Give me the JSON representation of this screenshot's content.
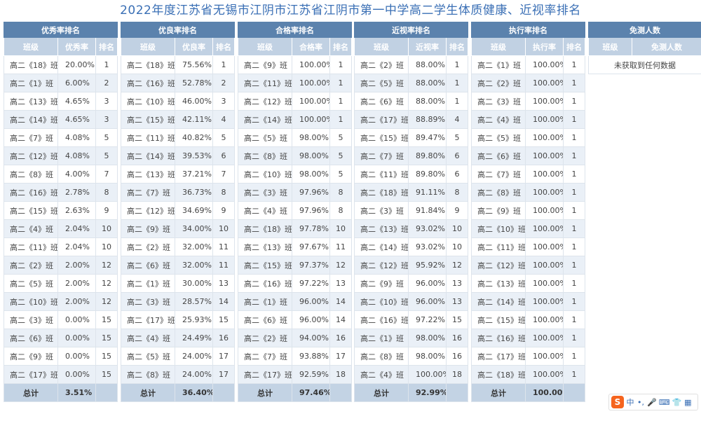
{
  "page": {
    "title": "2022年度江苏省无锡市江阴市江苏省江阴市第一中学高二学生体质健康、近视率排名"
  },
  "tables": [
    {
      "id": "excellent",
      "title": "优秀率排名",
      "headers": [
        "班级",
        "优秀率",
        "排名"
      ],
      "rows": [
        [
          "高二《18》班",
          "20.00%",
          "1"
        ],
        [
          "高二《1》班",
          "6.00%",
          "2"
        ],
        [
          "高二《13》班",
          "4.65%",
          "3"
        ],
        [
          "高二《14》班",
          "4.65%",
          "3"
        ],
        [
          "高二《7》班",
          "4.08%",
          "5"
        ],
        [
          "高二《12》班",
          "4.08%",
          "5"
        ],
        [
          "高二《8》班",
          "4.00%",
          "7"
        ],
        [
          "高二《16》班",
          "2.78%",
          "8"
        ],
        [
          "高二《15》班",
          "2.63%",
          "9"
        ],
        [
          "高二《4》班",
          "2.04%",
          "10"
        ],
        [
          "高二《11》班",
          "2.04%",
          "10"
        ],
        [
          "高二《2》班",
          "2.00%",
          "12"
        ],
        [
          "高二《5》班",
          "2.00%",
          "12"
        ],
        [
          "高二《10》班",
          "2.00%",
          "12"
        ],
        [
          "高二《3》班",
          "0.00%",
          "15"
        ],
        [
          "高二《6》班",
          "0.00%",
          "15"
        ],
        [
          "高二《9》班",
          "0.00%",
          "15"
        ],
        [
          "高二《17》班",
          "0.00%",
          "15"
        ]
      ],
      "total": [
        "总计",
        "3.51%",
        ""
      ]
    },
    {
      "id": "good",
      "title": "优良率排名",
      "headers": [
        "班级",
        "优良率",
        "排名"
      ],
      "rows": [
        [
          "高二《18》班",
          "75.56%",
          "1"
        ],
        [
          "高二《16》班",
          "52.78%",
          "2"
        ],
        [
          "高二《10》班",
          "46.00%",
          "3"
        ],
        [
          "高二《15》班",
          "42.11%",
          "4"
        ],
        [
          "高二《11》班",
          "40.82%",
          "5"
        ],
        [
          "高二《14》班",
          "39.53%",
          "6"
        ],
        [
          "高二《13》班",
          "37.21%",
          "7"
        ],
        [
          "高二《7》班",
          "36.73%",
          "8"
        ],
        [
          "高二《12》班",
          "34.69%",
          "9"
        ],
        [
          "高二《9》班",
          "34.00%",
          "10"
        ],
        [
          "高二《2》班",
          "32.00%",
          "11"
        ],
        [
          "高二《6》班",
          "32.00%",
          "11"
        ],
        [
          "高二《1》班",
          "30.00%",
          "13"
        ],
        [
          "高二《3》班",
          "28.57%",
          "14"
        ],
        [
          "高二《17》班",
          "25.93%",
          "15"
        ],
        [
          "高二《4》班",
          "24.49%",
          "16"
        ],
        [
          "高二《5》班",
          "24.00%",
          "17"
        ],
        [
          "高二《8》班",
          "24.00%",
          "17"
        ]
      ],
      "total": [
        "总计",
        "36.40%",
        ""
      ]
    },
    {
      "id": "pass",
      "title": "合格率排名",
      "headers": [
        "班级",
        "合格率",
        "排名"
      ],
      "rows": [
        [
          "高二《9》班",
          "100.00%",
          "1"
        ],
        [
          "高二《11》班",
          "100.00%",
          "1"
        ],
        [
          "高二《12》班",
          "100.00%",
          "1"
        ],
        [
          "高二《14》班",
          "100.00%",
          "1"
        ],
        [
          "高二《5》班",
          "98.00%",
          "5"
        ],
        [
          "高二《8》班",
          "98.00%",
          "5"
        ],
        [
          "高二《10》班",
          "98.00%",
          "5"
        ],
        [
          "高二《3》班",
          "97.96%",
          "8"
        ],
        [
          "高二《4》班",
          "97.96%",
          "8"
        ],
        [
          "高二《18》班",
          "97.78%",
          "10"
        ],
        [
          "高二《13》班",
          "97.67%",
          "11"
        ],
        [
          "高二《15》班",
          "97.37%",
          "12"
        ],
        [
          "高二《16》班",
          "97.22%",
          "13"
        ],
        [
          "高二《1》班",
          "96.00%",
          "14"
        ],
        [
          "高二《6》班",
          "96.00%",
          "14"
        ],
        [
          "高二《2》班",
          "94.00%",
          "16"
        ],
        [
          "高二《7》班",
          "93.88%",
          "17"
        ],
        [
          "高二《17》班",
          "92.59%",
          "18"
        ]
      ],
      "total": [
        "总计",
        "97.46%",
        ""
      ]
    },
    {
      "id": "myopia",
      "title": "近视率排名",
      "headers": [
        "班级",
        "近视率",
        "排名"
      ],
      "rows": [
        [
          "高二《2》班",
          "88.00%",
          "1"
        ],
        [
          "高二《5》班",
          "88.00%",
          "1"
        ],
        [
          "高二《6》班",
          "88.00%",
          "1"
        ],
        [
          "高二《17》班",
          "88.89%",
          "4"
        ],
        [
          "高二《15》班",
          "89.47%",
          "5"
        ],
        [
          "高二《7》班",
          "89.80%",
          "6"
        ],
        [
          "高二《11》班",
          "89.80%",
          "6"
        ],
        [
          "高二《18》班",
          "91.11%",
          "8"
        ],
        [
          "高二《3》班",
          "91.84%",
          "9"
        ],
        [
          "高二《13》班",
          "93.02%",
          "10"
        ],
        [
          "高二《14》班",
          "93.02%",
          "10"
        ],
        [
          "高二《12》班",
          "95.92%",
          "12"
        ],
        [
          "高二《9》班",
          "96.00%",
          "13"
        ],
        [
          "高二《10》班",
          "96.00%",
          "13"
        ],
        [
          "高二《16》班",
          "97.22%",
          "15"
        ],
        [
          "高二《1》班",
          "98.00%",
          "16"
        ],
        [
          "高二《8》班",
          "98.00%",
          "16"
        ],
        [
          "高二《4》班",
          "100.00%",
          "18"
        ]
      ],
      "total": [
        "总计",
        "92.99%",
        ""
      ]
    },
    {
      "id": "execution",
      "title": "执行率排名",
      "headers": [
        "班级",
        "执行率",
        "排名"
      ],
      "rows": [
        [
          "高二《1》班",
          "100.00%",
          "1"
        ],
        [
          "高二《2》班",
          "100.00%",
          "1"
        ],
        [
          "高二《3》班",
          "100.00%",
          "1"
        ],
        [
          "高二《4》班",
          "100.00%",
          "1"
        ],
        [
          "高二《5》班",
          "100.00%",
          "1"
        ],
        [
          "高二《6》班",
          "100.00%",
          "1"
        ],
        [
          "高二《7》班",
          "100.00%",
          "1"
        ],
        [
          "高二《8》班",
          "100.00%",
          "1"
        ],
        [
          "高二《9》班",
          "100.00%",
          "1"
        ],
        [
          "高二《10》班",
          "100.00%",
          "1"
        ],
        [
          "高二《11》班",
          "100.00%",
          "1"
        ],
        [
          "高二《12》班",
          "100.00%",
          "1"
        ],
        [
          "高二《13》班",
          "100.00%",
          "1"
        ],
        [
          "高二《14》班",
          "100.00%",
          "1"
        ],
        [
          "高二《15》班",
          "100.00%",
          "1"
        ],
        [
          "高二《16》班",
          "100.00%",
          "1"
        ],
        [
          "高二《17》班",
          "100.00%",
          "1"
        ],
        [
          "高二《18》班",
          "100.00%",
          "1"
        ]
      ],
      "total": [
        "总计",
        "100.00%",
        ""
      ]
    }
  ],
  "exempt": {
    "title": "免测人数",
    "headers": [
      "班级",
      "免测人数"
    ],
    "empty_text": "未获取到任何数据"
  },
  "ime_toolbar": {
    "logo": "S",
    "items": [
      {
        "label": "中",
        "icon": "chinese-mode-icon"
      },
      {
        "label": "•,",
        "icon": "punctuation-icon"
      },
      {
        "label": "🎤",
        "icon": "microphone-icon"
      },
      {
        "label": "⌨",
        "icon": "keyboard-icon"
      },
      {
        "label": "👕",
        "icon": "skin-icon"
      },
      {
        "label": "▦",
        "icon": "toolbox-icon"
      }
    ]
  }
}
